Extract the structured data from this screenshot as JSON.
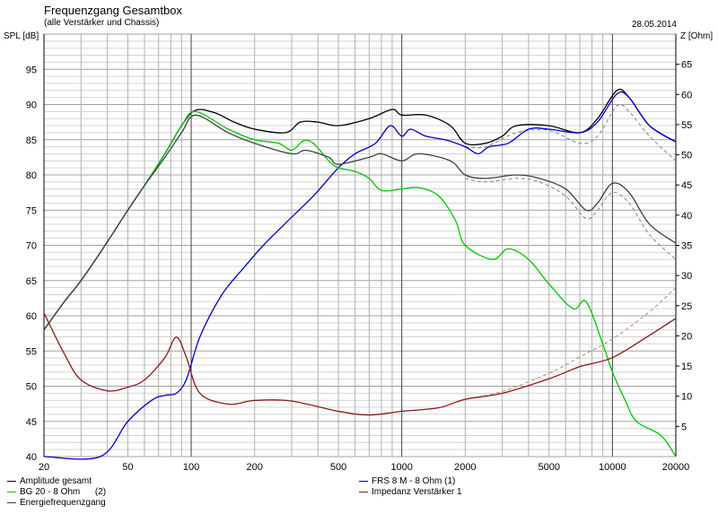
{
  "header": {
    "title": "Frequenzgang Gesamtbox",
    "subtitle": "(alle Verstärker und Chassis)",
    "date": "28.05.2014"
  },
  "chart_data": {
    "type": "line",
    "title": "Frequenzgang Gesamtbox",
    "xlabel": "",
    "ylabel": "SPL [dB]",
    "y2label": "Z [Ohm]",
    "xscale": "log",
    "xlim": [
      20,
      20000
    ],
    "ylim": [
      40,
      100
    ],
    "y2lim": [
      0,
      70
    ],
    "grid": true,
    "x_ticks": [
      "20",
      "50",
      "100",
      "200",
      "500",
      "1000",
      "2000",
      "5000",
      "10000",
      "20000"
    ],
    "x_tick_values": [
      20,
      50,
      100,
      200,
      500,
      1000,
      2000,
      5000,
      10000,
      20000
    ],
    "y_ticks": [
      "40",
      "45",
      "50",
      "55",
      "60",
      "65",
      "70",
      "75",
      "80",
      "85",
      "90",
      "95"
    ],
    "y2_ticks": [
      "5",
      "10",
      "15",
      "20",
      "25",
      "30",
      "35",
      "40",
      "45",
      "50",
      "55",
      "60",
      "65"
    ],
    "series": [
      {
        "name": "Amplitude gesamt",
        "color": "#000000",
        "axis": "spl",
        "x": [
          20,
          25,
          30,
          40,
          50,
          60,
          75,
          90,
          105,
          130,
          160,
          200,
          280,
          330,
          400,
          500,
          700,
          900,
          1000,
          1300,
          1700,
          2000,
          2500,
          3000,
          3500,
          5000,
          7000,
          8500,
          10500,
          12000,
          15000,
          20000
        ],
        "y": [
          58,
          62,
          65,
          70.5,
          75,
          78.5,
          83,
          87,
          89.2,
          88.8,
          87.5,
          86.5,
          86,
          87.5,
          87.5,
          87,
          88,
          89.3,
          88.5,
          88.5,
          87,
          84.5,
          84.5,
          85.5,
          87,
          87,
          86,
          88,
          92,
          91,
          87,
          84.7
        ]
      },
      {
        "name": "FRS 8 M - 8 Ohm (1)",
        "color": "#0000c8",
        "axis": "spl",
        "x": [
          20,
          37,
          50,
          65,
          75,
          85,
          95,
          110,
          140,
          180,
          220,
          300,
          380,
          500,
          600,
          750,
          880,
          1000,
          1100,
          1300,
          1600,
          2000,
          2300,
          2600,
          3200,
          4000,
          5000,
          7000,
          8500,
          10500,
          12000,
          15000,
          20000
        ],
        "y": [
          40,
          40,
          45,
          48,
          48.7,
          49,
          51,
          57,
          63,
          67,
          70,
          74,
          77,
          81,
          83,
          84.5,
          87,
          85.5,
          86.5,
          85.5,
          85,
          84,
          83,
          84,
          84.5,
          86.5,
          86.5,
          86,
          87.5,
          91.5,
          91,
          87,
          84.7
        ]
      },
      {
        "name": "BG 20 - 8 Ohm      (2)",
        "color": "#00c800",
        "axis": "spl",
        "x": [
          20,
          25,
          30,
          40,
          50,
          60,
          75,
          90,
          105,
          150,
          200,
          260,
          300,
          340,
          380,
          450,
          500,
          600,
          700,
          800,
          1000,
          1200,
          1500,
          1800,
          2000,
          2700,
          3200,
          4000,
          5000,
          6500,
          7500,
          9000,
          10000,
          11500,
          13000,
          17000,
          20000
        ],
        "y": [
          58,
          62,
          65,
          70.5,
          75,
          78.5,
          83,
          87,
          89,
          86.5,
          85,
          84.5,
          83.5,
          84.8,
          84.5,
          82,
          81,
          80.5,
          79.5,
          77.8,
          78,
          78.2,
          77,
          73.5,
          70,
          68,
          69.5,
          68,
          64.5,
          61,
          62,
          56,
          52,
          48,
          45,
          43,
          40
        ]
      },
      {
        "name": "Impedanz Verstärker 1",
        "color": "#8b1a1a",
        "axis": "z",
        "x": [
          20,
          25,
          30,
          40,
          50,
          60,
          75,
          85,
          95,
          110,
          150,
          200,
          300,
          500,
          700,
          1000,
          1500,
          2000,
          3000,
          5000,
          7000,
          10000,
          15000,
          20000
        ],
        "y": [
          23.8,
          17,
          12.7,
          10.9,
          11.5,
          12.7,
          16.4,
          19.8,
          16.4,
          10.5,
          8.7,
          9.3,
          9.2,
          7.5,
          6.9,
          7.5,
          8.1,
          9.5,
          10.5,
          12.9,
          14.9,
          16.4,
          20.1,
          22.9
        ]
      },
      {
        "name": "Energiefrequenzgang",
        "color": "#404040",
        "axis": "spl",
        "x": [
          20,
          25,
          30,
          40,
          50,
          60,
          75,
          90,
          105,
          150,
          200,
          300,
          350,
          450,
          500,
          700,
          800,
          1000,
          1200,
          1700,
          2000,
          2500,
          3500,
          4500,
          6000,
          7500,
          8500,
          10000,
          12000,
          15000,
          20000
        ],
        "y": [
          58,
          62,
          65,
          70.5,
          75,
          78.5,
          82.5,
          86,
          88.5,
          86,
          84.5,
          83,
          83.5,
          82.5,
          81.5,
          82.5,
          83,
          82,
          83,
          82,
          80,
          79.5,
          80,
          79.5,
          78,
          75,
          76,
          78.8,
          77.5,
          73,
          70.3
        ]
      },
      {
        "name": "",
        "color": "#8080a0",
        "axis": "spl",
        "style": "dashed",
        "x": [
          2000,
          2500,
          3500,
          5000,
          7000,
          8500,
          10500,
          12000,
          15000,
          20000
        ],
        "y": [
          84,
          84,
          86,
          86.3,
          84.5,
          85.5,
          89.8,
          89,
          85.5,
          82
        ]
      },
      {
        "name": "",
        "color": "#8080a0",
        "axis": "spl",
        "style": "dashed",
        "x": [
          2000,
          2500,
          3500,
          4500,
          6000,
          7500,
          8500,
          10000,
          12000,
          15000,
          20000
        ],
        "y": [
          79.5,
          79,
          79.5,
          79,
          77,
          73.8,
          75,
          77.5,
          76,
          71.5,
          68
        ]
      },
      {
        "name": "",
        "color": "#c08080",
        "axis": "z",
        "style": "dashed",
        "x": [
          2000,
          3000,
          5000,
          7000,
          10000,
          15000,
          20000
        ],
        "y": [
          9.5,
          10.8,
          13.8,
          16.5,
          19.5,
          24,
          28
        ]
      }
    ]
  },
  "legend": [
    {
      "label": "Amplitude gesamt",
      "color": "#000000"
    },
    {
      "label": "BG 20 - 8 Ohm      (2)",
      "color": "#00c800"
    },
    {
      "label": "Energiefrequenzgang",
      "color": "#404040"
    },
    {
      "label": "FRS 8 M - 8 Ohm (1)",
      "color": "#0000c8"
    },
    {
      "label": "Impedanz Verstärker 1",
      "color": "#8b1a1a"
    }
  ]
}
